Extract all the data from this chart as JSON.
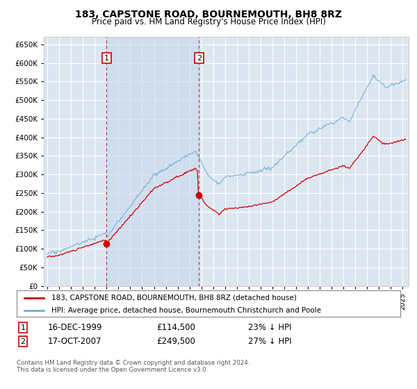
{
  "title": "183, CAPSTONE ROAD, BOURNEMOUTH, BH8 8RZ",
  "subtitle": "Price paid vs. HM Land Registry's House Price Index (HPI)",
  "ylabel_ticks": [
    "£0",
    "£50K",
    "£100K",
    "£150K",
    "£200K",
    "£250K",
    "£300K",
    "£350K",
    "£400K",
    "£450K",
    "£500K",
    "£550K",
    "£600K",
    "£650K"
  ],
  "ytick_values": [
    0,
    50000,
    100000,
    150000,
    200000,
    250000,
    300000,
    350000,
    400000,
    450000,
    500000,
    550000,
    600000,
    650000
  ],
  "ylim": [
    0,
    670000
  ],
  "xlim_start": 1994.7,
  "xlim_end": 2025.5,
  "hpi_color": "#6baed6",
  "price_color": "#cc0000",
  "marker1_date": 2000.0,
  "marker1_price": 114500,
  "marker2_date": 2007.8,
  "marker2_price": 249500,
  "legend_label1": "183, CAPSTONE ROAD, BOURNEMOUTH, BH8 8RZ (detached house)",
  "legend_label2": "HPI: Average price, detached house, Bournemouth Christchurch and Poole",
  "annotation1_label": "1",
  "annotation2_label": "2",
  "footer": "Contains HM Land Registry data © Crown copyright and database right 2024.\nThis data is licensed under the Open Government Licence v3.0.",
  "plot_bg_color": "#dce6f1",
  "shaded_bg_color": "#dce6f1",
  "grid_color": "#ffffff",
  "shade_between_color": "#c8d8ed"
}
